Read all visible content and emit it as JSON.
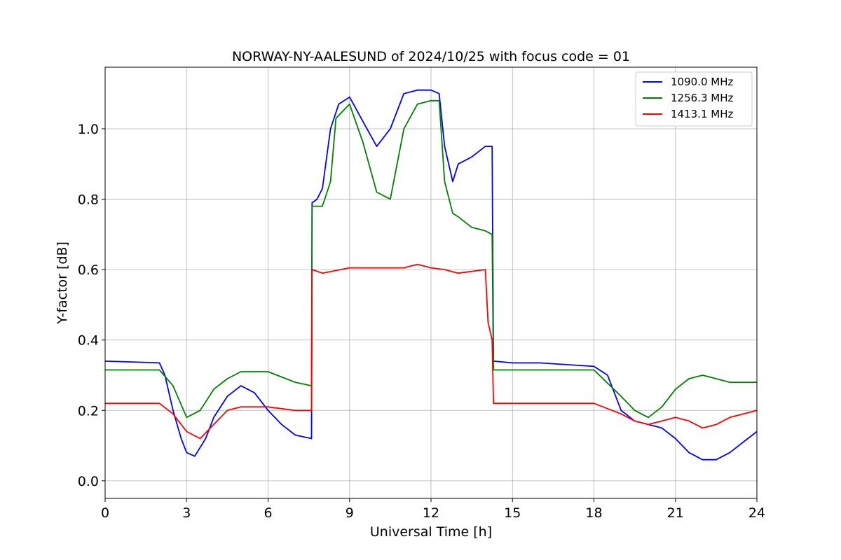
{
  "chart_data": {
    "type": "line",
    "title": "NORWAY-NY-AALESUND of 2024/10/25 with focus code = 01",
    "xlabel": "Universal Time [h]",
    "ylabel": "Y-factor [dB]",
    "xlim": [
      0,
      24
    ],
    "ylim": [
      -0.05,
      1.175
    ],
    "xticks": [
      0,
      3,
      6,
      9,
      12,
      15,
      18,
      21,
      24
    ],
    "yticks": [
      0.0,
      0.2,
      0.4,
      0.6,
      0.8,
      1.0
    ],
    "xtick_labels": [
      "0",
      "3",
      "6",
      "9",
      "12",
      "15",
      "18",
      "21",
      "24"
    ],
    "ytick_labels": [
      "0.0",
      "0.2",
      "0.4",
      "0.6",
      "0.8",
      "1.0"
    ],
    "grid": true,
    "legend_position": "top-right",
    "series": [
      {
        "name": "1090.0 MHz",
        "color": "#0000ff",
        "x": [
          0,
          2,
          2.2,
          2.5,
          2.8,
          3.0,
          3.3,
          3.7,
          4.0,
          4.5,
          5.0,
          5.5,
          6.0,
          6.5,
          7.0,
          7.6,
          7.62,
          7.8,
          8.0,
          8.3,
          8.6,
          9.0,
          9.5,
          10.0,
          10.5,
          11.0,
          11.5,
          12.0,
          12.3,
          12.5,
          12.8,
          13.0,
          13.5,
          14.0,
          14.25,
          14.3,
          15.0,
          16.0,
          17.0,
          18.0,
          18.5,
          19.0,
          19.5,
          20.0,
          20.5,
          21.0,
          21.5,
          22.0,
          22.5,
          23.0,
          23.5,
          24.0
        ],
        "y": [
          0.34,
          0.335,
          0.3,
          0.2,
          0.12,
          0.08,
          0.07,
          0.12,
          0.18,
          0.24,
          0.27,
          0.25,
          0.2,
          0.16,
          0.13,
          0.12,
          0.79,
          0.8,
          0.83,
          1.0,
          1.07,
          1.09,
          1.02,
          0.95,
          1.0,
          1.1,
          1.11,
          1.11,
          1.1,
          0.95,
          0.85,
          0.9,
          0.92,
          0.95,
          0.95,
          0.34,
          0.335,
          0.335,
          0.33,
          0.325,
          0.3,
          0.2,
          0.17,
          0.16,
          0.15,
          0.12,
          0.08,
          0.06,
          0.06,
          0.08,
          0.11,
          0.14
        ]
      },
      {
        "name": "1256.3 MHz",
        "color": "#008000",
        "x": [
          0,
          2,
          2.5,
          3.0,
          3.5,
          4.0,
          4.5,
          5.0,
          6.0,
          7.0,
          7.6,
          7.62,
          8.0,
          8.3,
          8.5,
          9.0,
          9.5,
          10.0,
          10.5,
          11.0,
          11.5,
          12.0,
          12.3,
          12.5,
          12.8,
          13.0,
          13.5,
          14.0,
          14.25,
          14.3,
          15.0,
          16.0,
          17.0,
          18.0,
          19.0,
          19.5,
          20.0,
          20.5,
          21.0,
          21.5,
          22.0,
          22.5,
          23.0,
          24.0
        ],
        "y": [
          0.315,
          0.315,
          0.27,
          0.18,
          0.2,
          0.26,
          0.29,
          0.31,
          0.31,
          0.28,
          0.27,
          0.78,
          0.78,
          0.85,
          1.03,
          1.07,
          0.96,
          0.82,
          0.8,
          1.0,
          1.07,
          1.08,
          1.08,
          0.85,
          0.76,
          0.75,
          0.72,
          0.71,
          0.7,
          0.315,
          0.315,
          0.315,
          0.315,
          0.315,
          0.24,
          0.2,
          0.18,
          0.21,
          0.26,
          0.29,
          0.3,
          0.29,
          0.28,
          0.28
        ]
      },
      {
        "name": "1413.1 MHz",
        "color": "#ff0000",
        "x": [
          0,
          2,
          2.5,
          3.0,
          3.5,
          4.0,
          4.5,
          5.0,
          6.0,
          7.0,
          7.6,
          7.62,
          8.0,
          9.0,
          10.0,
          11.0,
          11.5,
          12.0,
          12.5,
          13.0,
          14.0,
          14.1,
          14.25,
          14.3,
          15.0,
          16.0,
          17.0,
          18.0,
          19.0,
          19.5,
          20.0,
          20.5,
          21.0,
          21.5,
          22.0,
          22.5,
          23.0,
          24.0
        ],
        "y": [
          0.22,
          0.22,
          0.19,
          0.14,
          0.12,
          0.16,
          0.2,
          0.21,
          0.21,
          0.2,
          0.2,
          0.6,
          0.59,
          0.605,
          0.605,
          0.605,
          0.615,
          0.605,
          0.6,
          0.59,
          0.6,
          0.45,
          0.4,
          0.22,
          0.22,
          0.22,
          0.22,
          0.22,
          0.19,
          0.17,
          0.16,
          0.17,
          0.18,
          0.17,
          0.15,
          0.16,
          0.18,
          0.2
        ]
      }
    ]
  }
}
